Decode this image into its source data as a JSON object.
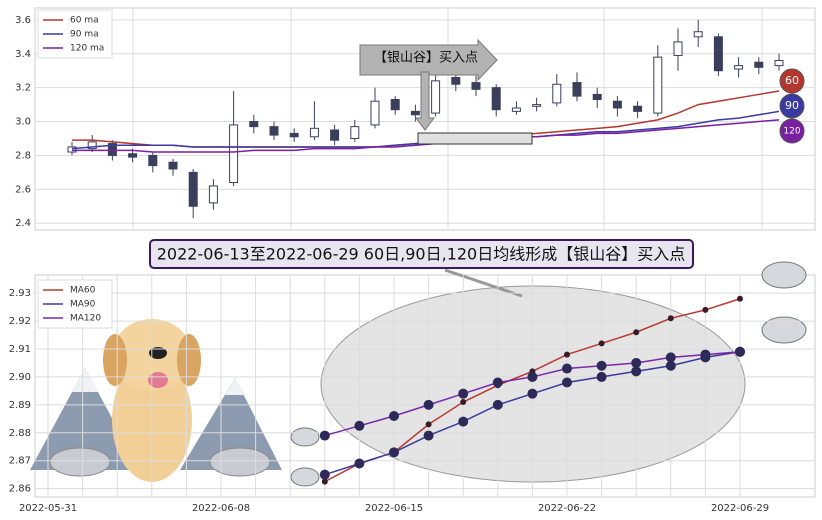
{
  "chart_data": [
    {
      "type": "candlestick",
      "annotation": "【银山谷】买入点",
      "ylim": [
        2.36,
        3.67
      ],
      "yticks": [
        2.4,
        2.6,
        2.8,
        {
          "value": 3,
          "label": "3.0"
        },
        3.2,
        3.4,
        3.6
      ],
      "grid": true,
      "legend": "upper left",
      "up_color": "#ffffff",
      "down_color": "#3a3f5c",
      "open": [
        2.82,
        2.84,
        2.87,
        2.81,
        2.8,
        2.76,
        2.7,
        2.52,
        2.64,
        3.0,
        2.97,
        2.93,
        2.91,
        2.95,
        2.9,
        2.98,
        3.13,
        3.06,
        3.05,
        3.26,
        3.23,
        3.2,
        3.06,
        3.09,
        3.11,
        3.23,
        3.16,
        3.12,
        3.09,
        3.05,
        3.39,
        3.5,
        3.5,
        3.31,
        3.35,
        3.33
      ],
      "high": [
        2.88,
        2.92,
        2.89,
        2.84,
        2.82,
        2.78,
        2.72,
        2.66,
        3.18,
        3.04,
        3.0,
        2.96,
        3.12,
        2.98,
        3.01,
        3.2,
        3.15,
        3.1,
        3.32,
        3.3,
        3.27,
        3.22,
        3.12,
        3.14,
        3.28,
        3.29,
        3.2,
        3.15,
        3.12,
        3.45,
        3.55,
        3.6,
        3.52,
        3.38,
        3.38,
        3.4
      ],
      "low": [
        2.8,
        2.82,
        2.77,
        2.76,
        2.7,
        2.68,
        2.43,
        2.48,
        2.62,
        2.93,
        2.89,
        2.88,
        2.89,
        2.86,
        2.88,
        2.96,
        3.04,
        3.0,
        3.03,
        3.18,
        3.15,
        3.03,
        3.04,
        3.06,
        3.09,
        3.12,
        3.08,
        3.03,
        3.02,
        3.03,
        3.3,
        3.44,
        3.27,
        3.26,
        3.28,
        3.3
      ],
      "close": [
        2.85,
        2.88,
        2.8,
        2.79,
        2.74,
        2.72,
        2.5,
        2.62,
        2.98,
        2.97,
        2.92,
        2.91,
        2.96,
        2.89,
        2.97,
        3.12,
        3.07,
        3.04,
        3.24,
        3.22,
        3.19,
        3.07,
        3.08,
        3.1,
        3.22,
        3.15,
        3.13,
        3.08,
        3.06,
        3.38,
        3.47,
        3.53,
        3.3,
        3.33,
        3.32,
        3.36
      ],
      "series": [
        {
          "name": "60 ma",
          "end_label": "60",
          "color": "#b5362d",
          "values": [
            2.89,
            2.89,
            2.88,
            2.87,
            2.86,
            2.86,
            2.85,
            2.85,
            2.85,
            2.85,
            2.85,
            2.85,
            2.85,
            2.85,
            2.85,
            2.85,
            2.86,
            2.87,
            2.88,
            2.89,
            2.9,
            2.91,
            2.92,
            2.93,
            2.94,
            2.95,
            2.96,
            2.97,
            2.99,
            3.01,
            3.05,
            3.1,
            3.12,
            3.14,
            3.16,
            3.18
          ]
        },
        {
          "name": "90 ma",
          "end_label": "90",
          "color": "#3a3aa0",
          "values": [
            2.84,
            2.85,
            2.86,
            2.86,
            2.86,
            2.86,
            2.85,
            2.85,
            2.85,
            2.85,
            2.85,
            2.85,
            2.85,
            2.85,
            2.85,
            2.85,
            2.86,
            2.87,
            2.88,
            2.89,
            2.9,
            2.9,
            2.91,
            2.91,
            2.92,
            2.93,
            2.94,
            2.94,
            2.95,
            2.96,
            2.97,
            2.99,
            3.01,
            3.02,
            3.04,
            3.06
          ]
        },
        {
          "name": "120 ma",
          "end_label": "120",
          "color": "#7b1fa2",
          "values": [
            2.83,
            2.83,
            2.83,
            2.83,
            2.82,
            2.82,
            2.82,
            2.82,
            2.82,
            2.83,
            2.83,
            2.83,
            2.84,
            2.84,
            2.84,
            2.85,
            2.85,
            2.86,
            2.87,
            2.88,
            2.89,
            2.9,
            2.91,
            2.91,
            2.92,
            2.92,
            2.93,
            2.93,
            2.94,
            2.95,
            2.96,
            2.97,
            2.98,
            2.99,
            3.0,
            3.01
          ]
        }
      ]
    },
    {
      "type": "line",
      "title": "2022-06-13至2022-06-29 60日,90日,120日均线形成【银山谷】买入点",
      "categories": [
        "2022-05-31",
        null,
        null,
        null,
        null,
        "2022-06-08",
        null,
        null,
        null,
        null,
        "2022-06-15",
        null,
        null,
        null,
        null,
        "2022-06-22",
        null,
        null,
        null,
        null,
        "2022-06-29"
      ],
      "ylim": [
        2.857,
        2.9365
      ],
      "yticks": [
        2.86,
        2.87,
        2.88,
        2.89,
        {
          "value": 2.9,
          "label": "2.90"
        },
        2.91,
        2.92,
        2.93
      ],
      "grid": true,
      "legend": "upper left",
      "series": [
        {
          "name": "MA60",
          "color": "#b83a2e",
          "values": [
            null,
            null,
            null,
            null,
            null,
            null,
            null,
            null,
            2.8625,
            2.869,
            2.873,
            2.883,
            2.891,
            2.897,
            2.902,
            2.908,
            2.912,
            2.916,
            2.921,
            2.924,
            2.928
          ]
        },
        {
          "name": "MA90",
          "color": "#3b3b9e",
          "values": [
            null,
            null,
            null,
            null,
            null,
            null,
            null,
            null,
            2.865,
            2.869,
            2.873,
            2.879,
            2.884,
            2.89,
            2.894,
            2.898,
            2.9,
            2.902,
            2.904,
            2.907,
            2.909
          ]
        },
        {
          "name": "MA120",
          "color": "#7a28a8",
          "values": [
            null,
            null,
            null,
            null,
            null,
            null,
            null,
            null,
            2.879,
            2.8825,
            2.886,
            2.89,
            2.894,
            2.898,
            2.9,
            2.903,
            2.904,
            2.905,
            2.907,
            2.908,
            2.909
          ]
        }
      ]
    }
  ]
}
